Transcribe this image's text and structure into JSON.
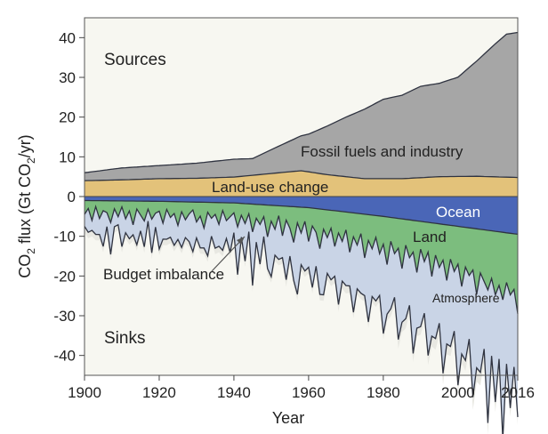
{
  "chart_data": {
    "type": "area",
    "title": "",
    "xlabel": "Year",
    "ylabel_parts": [
      "CO",
      "2",
      " flux (Gt CO",
      "2",
      "/yr)"
    ],
    "xlim": [
      1900,
      2016
    ],
    "ylim": [
      -45,
      45
    ],
    "xticks": [
      1900,
      1920,
      1940,
      1960,
      1980,
      2000,
      2016
    ],
    "yticks": [
      40,
      30,
      20,
      10,
      0,
      -10,
      -20,
      -30,
      -40
    ],
    "annotations": {
      "sources": "Sources",
      "sinks": "Sinks",
      "fossil": "Fossil fuels and industry",
      "landuse": "Land-use change",
      "ocean": "Ocean",
      "land": "Land",
      "atmosphere": "Atmosphere",
      "budget": "Budget imbalance"
    },
    "colors": {
      "fossil": "#a6a6a6",
      "landuse": "#e3c27a",
      "ocean": "#4a66b7",
      "land": "#7cbd7e",
      "atmosphere": "#c9d4e6",
      "imbalance": "#e8e8e2",
      "plot_bg": "#f7f7f1"
    },
    "series": [
      {
        "name": "Land-use change",
        "x": [
          1900,
          1910,
          1920,
          1930,
          1940,
          1950,
          1958,
          1965,
          1975,
          1985,
          1995,
          2005,
          2016
        ],
        "values": [
          4.0,
          4.2,
          4.5,
          4.6,
          4.9,
          5.8,
          6.5,
          5.5,
          4.5,
          4.5,
          5.0,
          5.1,
          4.8
        ]
      },
      {
        "name": "Fossil fuels and industry",
        "x": [
          1900,
          1910,
          1920,
          1930,
          1940,
          1945,
          1950,
          1960,
          1970,
          1980,
          1985,
          1990,
          1995,
          2000,
          2005,
          2010,
          2013,
          2016
        ],
        "values": [
          2.0,
          3.0,
          3.3,
          3.8,
          4.5,
          4.2,
          6.0,
          9.5,
          15.0,
          20.0,
          21.0,
          23.0,
          23.5,
          25.0,
          29.0,
          33.5,
          36.0,
          36.5
        ]
      },
      {
        "name": "Ocean",
        "x": [
          1900,
          1920,
          1940,
          1960,
          1980,
          2000,
          2016
        ],
        "values": [
          -1.0,
          -1.2,
          -1.6,
          -2.8,
          -5.0,
          -7.5,
          -9.5
        ]
      },
      {
        "name": "Land",
        "x": [
          1900,
          1901,
          1902,
          1903,
          1904,
          1905,
          1906,
          1907,
          1908,
          1909,
          1910,
          1911,
          1912,
          1913,
          1914,
          1915,
          1916,
          1917,
          1918,
          1919,
          1920,
          1921,
          1922,
          1923,
          1924,
          1925,
          1926,
          1927,
          1928,
          1929,
          1930,
          1931,
          1932,
          1933,
          1934,
          1935,
          1936,
          1937,
          1938,
          1939,
          1940,
          1941,
          1942,
          1943,
          1944,
          1945,
          1946,
          1947,
          1948,
          1949,
          1950,
          1951,
          1952,
          1953,
          1954,
          1955,
          1956,
          1957,
          1958,
          1959,
          1960,
          1961,
          1962,
          1963,
          1964,
          1965,
          1966,
          1967,
          1968,
          1969,
          1970,
          1971,
          1972,
          1973,
          1974,
          1975,
          1976,
          1977,
          1978,
          1979,
          1980,
          1981,
          1982,
          1983,
          1984,
          1985,
          1986,
          1987,
          1988,
          1989,
          1990,
          1991,
          1992,
          1993,
          1994,
          1995,
          1996,
          1997,
          1998,
          1999,
          2000,
          2001,
          2002,
          2003,
          2004,
          2005,
          2006,
          2007,
          2008,
          2009,
          2010,
          2011,
          2012,
          2013,
          2014,
          2015,
          2016
        ],
        "values": [
          -3.5,
          -2.0,
          -5.0,
          -1.5,
          -4.5,
          -2.5,
          -3.0,
          -5.5,
          -2.0,
          -4.0,
          -1.5,
          -4.5,
          -2.5,
          -6.0,
          -2.0,
          -3.5,
          -5.0,
          -2.0,
          -4.5,
          -3.0,
          -2.5,
          -5.5,
          -2.0,
          -4.0,
          -3.0,
          -6.0,
          -2.5,
          -4.5,
          -3.0,
          -2.0,
          -5.0,
          -3.5,
          -6.5,
          -2.5,
          -4.0,
          -3.0,
          -5.5,
          -2.0,
          -4.5,
          -3.5,
          -2.5,
          -6.0,
          -3.0,
          -5.0,
          -2.5,
          -7.0,
          -3.5,
          -5.0,
          -3.0,
          -8.0,
          -4.0,
          -6.0,
          -2.5,
          -7.5,
          -3.5,
          -5.5,
          -9.0,
          -4.0,
          -6.5,
          -3.5,
          -8.5,
          -4.5,
          -6.0,
          -10.0,
          -5.0,
          -7.0,
          -4.5,
          -9.0,
          -5.5,
          -7.5,
          -4.5,
          -10.0,
          -6.0,
          -8.0,
          -5.0,
          -11.0,
          -6.5,
          -8.5,
          -5.5,
          -9.5,
          -7.0,
          -12.0,
          -6.0,
          -9.0,
          -7.5,
          -12.5,
          -6.5,
          -9.5,
          -8.0,
          -13.0,
          -7.0,
          -10.0,
          -7.5,
          -13.5,
          -8.0,
          -11.0,
          -9.0,
          -14.0,
          -8.5,
          -11.5,
          -9.5,
          -15.0,
          -10.0,
          -12.0,
          -10.5,
          -16.5,
          -11.0,
          -13.0,
          -15.0,
          -12.0,
          -16.0,
          -13.5,
          -17.0,
          -12.5,
          -15.5,
          -14.0,
          -20.0
        ]
      },
      {
        "name": "Atmosphere",
        "x": [
          1900,
          1901,
          1902,
          1903,
          1904,
          1905,
          1906,
          1907,
          1908,
          1909,
          1910,
          1911,
          1912,
          1913,
          1914,
          1915,
          1916,
          1917,
          1918,
          1919,
          1920,
          1921,
          1922,
          1923,
          1924,
          1925,
          1926,
          1927,
          1928,
          1929,
          1930,
          1931,
          1932,
          1933,
          1934,
          1935,
          1936,
          1937,
          1938,
          1939,
          1940,
          1941,
          1942,
          1943,
          1944,
          1945,
          1946,
          1947,
          1948,
          1949,
          1950,
          1951,
          1952,
          1953,
          1954,
          1955,
          1956,
          1957,
          1958,
          1959,
          1960,
          1961,
          1962,
          1963,
          1964,
          1965,
          1966,
          1967,
          1968,
          1969,
          1970,
          1971,
          1972,
          1973,
          1974,
          1975,
          1976,
          1977,
          1978,
          1979,
          1980,
          1981,
          1982,
          1983,
          1984,
          1985,
          1986,
          1987,
          1988,
          1989,
          1990,
          1991,
          1992,
          1993,
          1994,
          1995,
          1996,
          1997,
          1998,
          1999,
          2000,
          2001,
          2002,
          2003,
          2004,
          2005,
          2006,
          2007,
          2008,
          2009,
          2010,
          2011,
          2012,
          2013,
          2014,
          2015,
          2016
        ],
        "values": [
          -3.0,
          -6.0,
          -2.5,
          -7.0,
          -4.0,
          -9.0,
          -3.5,
          -8.0,
          -4.5,
          -2.0,
          -10.0,
          -3.5,
          -7.0,
          -2.5,
          -9.0,
          -4.0,
          -6.5,
          -3.0,
          -8.5,
          -3.5,
          -9.5,
          -4.0,
          -7.5,
          -5.0,
          -8.0,
          -3.5,
          -9.0,
          -4.5,
          -7.0,
          -10.5,
          -4.0,
          -8.0,
          -5.0,
          -11.0,
          -4.5,
          -8.5,
          -5.5,
          -10.0,
          -4.5,
          -9.0,
          -5.0,
          -12.0,
          -5.5,
          -9.5,
          -4.5,
          -13.5,
          -6.0,
          -10.0,
          -5.0,
          -8.0,
          -14.0,
          -6.5,
          -11.0,
          -5.5,
          -15.0,
          -7.0,
          -9.5,
          -18.0,
          -8.0,
          -12.5,
          -6.5,
          -15.5,
          -8.5,
          -11.5,
          -16.5,
          -9.0,
          -13.0,
          -7.5,
          -18.0,
          -10.0,
          -14.0,
          -8.5,
          -19.0,
          -11.0,
          -15.0,
          -9.5,
          -20.5,
          -12.0,
          -16.0,
          -10.5,
          -22.5,
          -12.5,
          -17.0,
          -11.0,
          -23.0,
          -13.5,
          -18.5,
          -12.0,
          -25.5,
          -14.0,
          -19.5,
          -13.0,
          -26.0,
          -15.0,
          -21.0,
          -14.0,
          -28.5,
          -16.0,
          -22.0,
          -15.0,
          -30.5,
          -17.0,
          -23.5,
          -16.0,
          -32.0,
          -18.5,
          -25.0,
          -17.0,
          -33.5,
          -19.5,
          -27.0,
          -18.5,
          -35.0,
          -20.5,
          -28.5,
          -19.5,
          -26.0
        ]
      },
      {
        "name": "Budget imbalance",
        "x": [
          1900,
          1905,
          1910,
          1915,
          1920,
          1925,
          1930,
          1935,
          1940,
          1945,
          1950,
          1955,
          1960,
          1965,
          1970,
          1975,
          1980,
          1985,
          1990,
          1995,
          2000,
          2005,
          2010,
          2016
        ],
        "values": [
          -2.5,
          -1.5,
          -2.0,
          -1.0,
          -1.5,
          -0.5,
          -1.0,
          -0.5,
          -1.0,
          0.0,
          -0.5,
          0.5,
          -1.0,
          0.0,
          0.5,
          -1.0,
          0.0,
          1.0,
          0.5,
          1.5,
          0.5,
          2.0,
          1.0,
          0.5
        ]
      }
    ]
  }
}
